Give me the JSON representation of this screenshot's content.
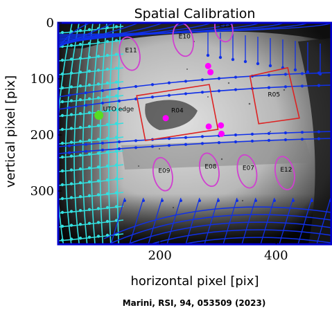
{
  "chart_data": {
    "type": "image",
    "title": "Spatial Calibration",
    "xlabel": "horizontal pixel [pix]",
    "ylabel": "vertical pixel [pix]",
    "xlim": [
      25,
      495
    ],
    "ylim": [
      395,
      0
    ],
    "xticks": [
      200,
      400
    ],
    "yticks": [
      0,
      100,
      200,
      300
    ],
    "xtick_labels": [
      "200",
      "400"
    ],
    "ytick_labels": [
      "0",
      "100",
      "200",
      "300"
    ],
    "regions": [
      {
        "label": "E11",
        "shape": "ellipse",
        "center": [
          148,
          55
        ],
        "rx": 17,
        "ry": 30,
        "angle": -12
      },
      {
        "label": "E10",
        "shape": "ellipse",
        "center": [
          240,
          30
        ],
        "rx": 17,
        "ry": 30,
        "angle": -12
      },
      {
        "label": "E13",
        "shape": "ellipse",
        "center": [
          310,
          10
        ],
        "rx": 15,
        "ry": 24,
        "angle": -12
      },
      {
        "label": "R04",
        "shape": "rect",
        "corners": [
          [
            160,
            130
          ],
          [
            285,
            110
          ],
          [
            300,
            190
          ],
          [
            175,
            210
          ]
        ]
      },
      {
        "label": "R05",
        "shape": "rect",
        "corners": [
          [
            355,
            95
          ],
          [
            420,
            80
          ],
          [
            440,
            170
          ],
          [
            370,
            180
          ]
        ]
      },
      {
        "label": "E09",
        "shape": "ellipse",
        "center": [
          205,
          270
        ],
        "rx": 16,
        "ry": 30,
        "angle": -12
      },
      {
        "label": "E08",
        "shape": "ellipse",
        "center": [
          285,
          262
        ],
        "rx": 16,
        "ry": 30,
        "angle": -12
      },
      {
        "label": "E07",
        "shape": "ellipse",
        "center": [
          350,
          265
        ],
        "rx": 16,
        "ry": 30,
        "angle": -12
      },
      {
        "label": "E12",
        "shape": "ellipse",
        "center": [
          415,
          268
        ],
        "rx": 16,
        "ry": 30,
        "angle": -12
      }
    ],
    "annotations": [
      {
        "text": "UTO edge",
        "x": 95,
        "y": 165
      }
    ],
    "colors": {
      "frame": "#0000cc",
      "grid_blue": "#1030e8",
      "grid_cyan": "#33e0e0",
      "region_magenta": "#d040d0",
      "region_red": "#dd2222",
      "marker_magenta": "#ff00ff",
      "marker_green": "#55dd22"
    }
  },
  "credit": "Marini, RSI, 94, 053509 (2023)"
}
